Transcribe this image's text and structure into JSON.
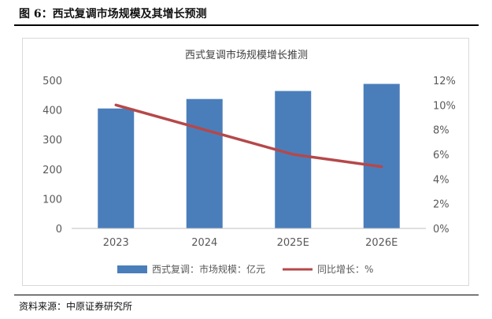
{
  "figure": {
    "title": "图 6：西式复调市场规模及其增长预测",
    "source": "资料来源：中原证券研究所"
  },
  "colors": {
    "bar": "#4a7ebb",
    "line": "#b5484a",
    "axis_text": "#595959",
    "baseline": "#bfbfbf",
    "title_text": "#404040"
  },
  "chart_data": {
    "type": "bar",
    "title": "西式复调市场规模增长推测",
    "categories": [
      "2023",
      "2024",
      "2025E",
      "2026E"
    ],
    "series": [
      {
        "name": "西式复调：市场规模：亿元",
        "type": "bar",
        "axis": "left",
        "values": [
          405,
          437,
          464,
          488
        ]
      },
      {
        "name": "同比增长：%",
        "type": "line",
        "axis": "right",
        "values": [
          10.0,
          8.0,
          6.0,
          5.0
        ]
      }
    ],
    "y_left": {
      "min": 0,
      "max": 500,
      "ticks": [
        "0",
        "100",
        "200",
        "300",
        "400",
        "500"
      ]
    },
    "y_right": {
      "min": 0,
      "max": 12,
      "ticks": [
        "0%",
        "2%",
        "4%",
        "6%",
        "8%",
        "10%",
        "12%"
      ]
    },
    "grid": false,
    "legend_position": "bottom"
  }
}
